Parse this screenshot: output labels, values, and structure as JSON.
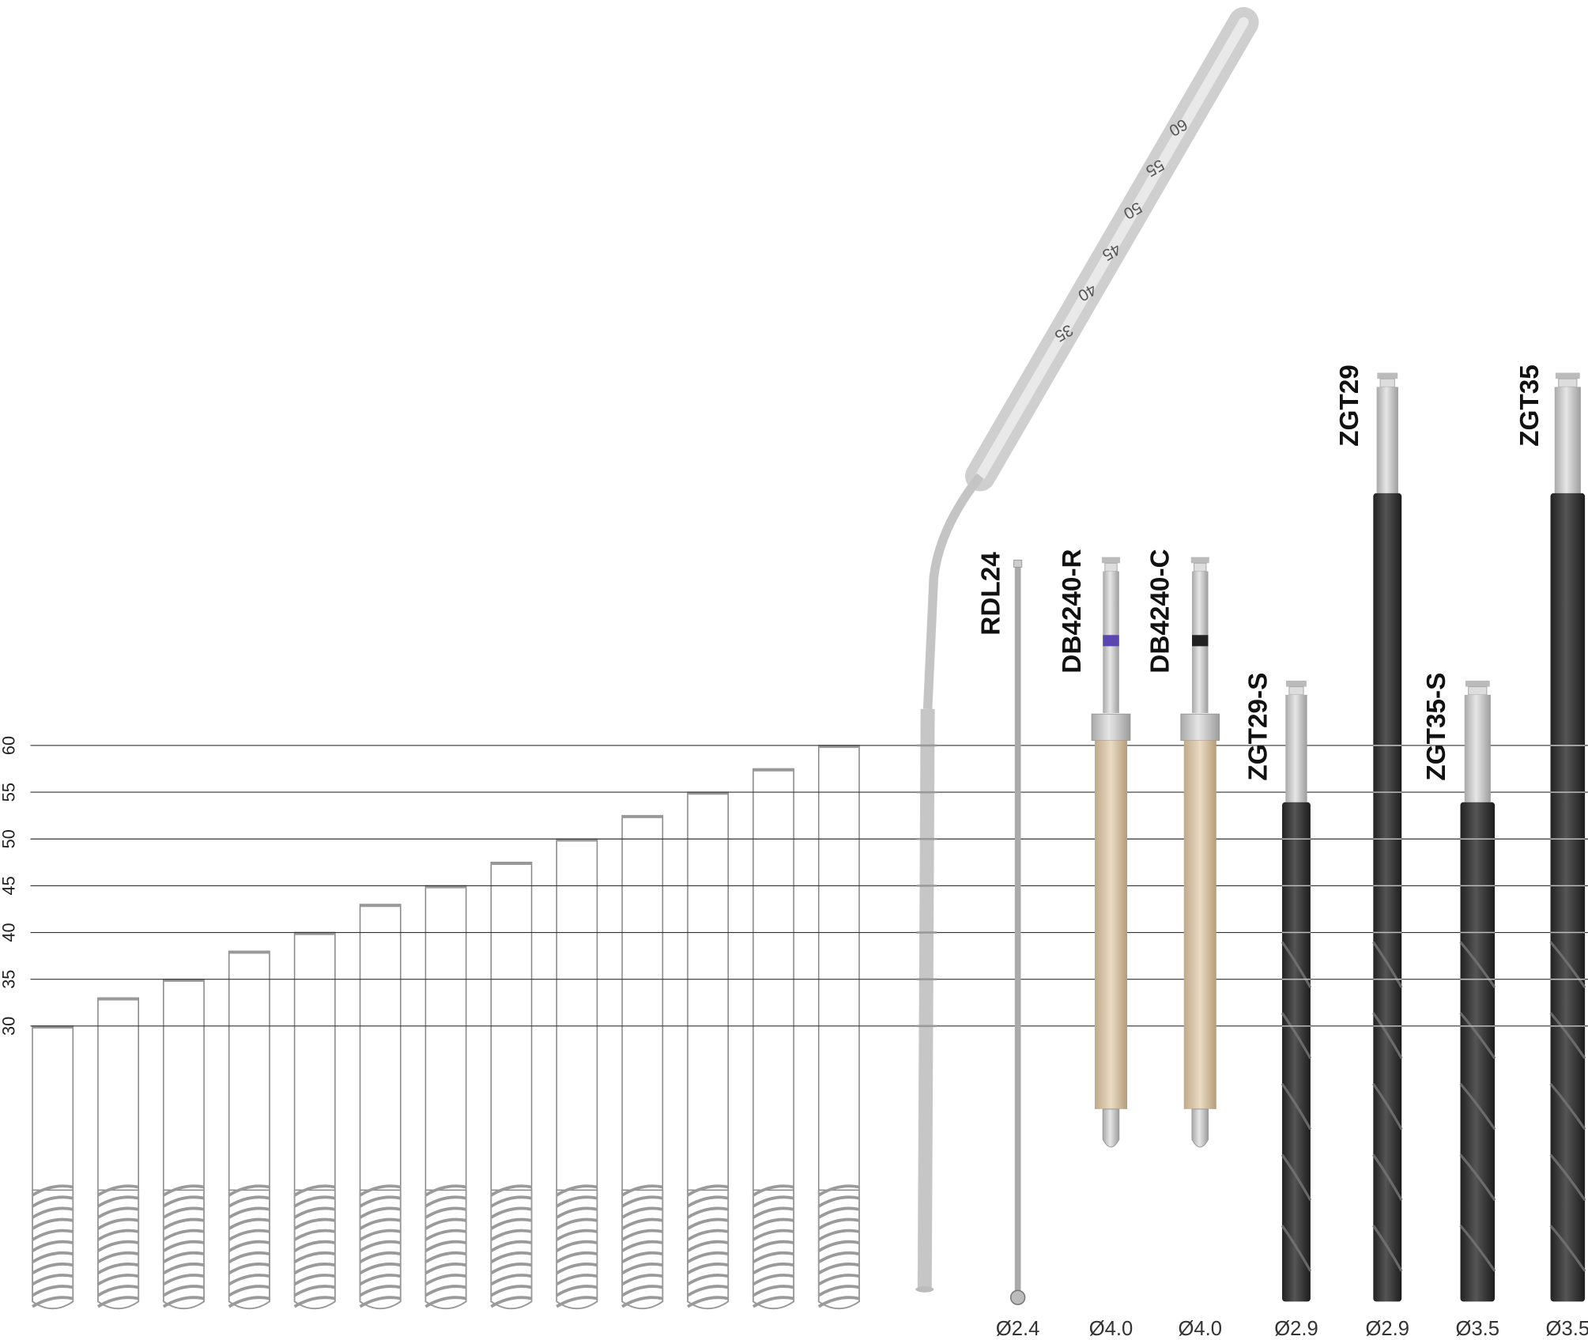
{
  "scale": {
    "ticks": [
      30,
      35,
      40,
      45,
      50,
      55,
      60
    ]
  },
  "implants": {
    "lengths": [
      30,
      33,
      35,
      38,
      40,
      43,
      45,
      47.5,
      50,
      52.5,
      55,
      57.5,
      60
    ]
  },
  "depth_gauge": {
    "markings": [
      35,
      40,
      45,
      50,
      55,
      60
    ]
  },
  "instruments": [
    {
      "name": "RDL24",
      "diameter": "Ø2.4"
    },
    {
      "name": "DB4240-R",
      "diameter": "Ø4.0"
    },
    {
      "name": "DB4240-C",
      "diameter": "Ø4.0"
    },
    {
      "name": "ZGT29-S",
      "diameter": "Ø2.9"
    },
    {
      "name": "ZGT29",
      "diameter": "Ø2.9"
    },
    {
      "name": "ZGT35-S",
      "diameter": "Ø3.5"
    },
    {
      "name": "ZGT35",
      "diameter": "Ø3.5"
    }
  ]
}
